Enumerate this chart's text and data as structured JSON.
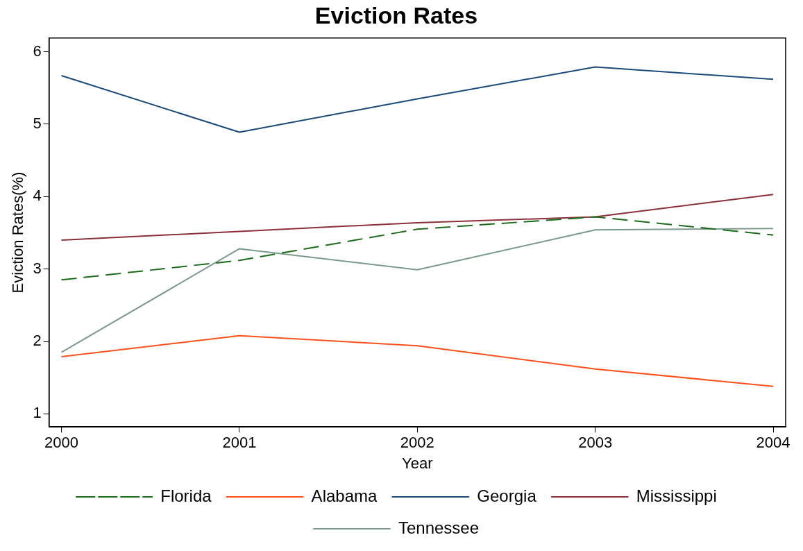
{
  "chart_data": {
    "type": "line",
    "title": "Eviction Rates",
    "xlabel": "Year",
    "ylabel": "Eviction Rates(%)",
    "x": [
      2000,
      2001,
      2002,
      2003,
      2004
    ],
    "xlim": [
      1999.93,
      2004.07
    ],
    "xticks": [
      2000,
      2001,
      2002,
      2003,
      2004
    ],
    "ylim": [
      0.82,
      6.19
    ],
    "yticks": [
      1,
      2,
      3,
      4,
      5,
      6
    ],
    "grid": false,
    "legend": "bottom",
    "marker": "none",
    "series": [
      {
        "name": "Florida",
        "color": "#1a6b1a",
        "line_style": "dashed",
        "values": [
          2.85,
          3.12,
          3.55,
          3.72,
          3.47
        ]
      },
      {
        "name": "Alabama",
        "color": "#ff4f1a",
        "values": [
          1.79,
          2.08,
          1.94,
          1.62,
          1.38
        ]
      },
      {
        "name": "Georgia",
        "color": "#1a4a7a",
        "values": [
          5.67,
          4.89,
          5.35,
          5.79,
          5.62
        ]
      },
      {
        "name": "Mississippi",
        "color": "#8b2f3a",
        "values": [
          3.4,
          3.52,
          3.64,
          3.72,
          4.03
        ]
      },
      {
        "name": "Tennessee",
        "color": "#7a9a8a",
        "values": [
          1.85,
          3.28,
          2.99,
          3.54,
          3.56
        ]
      }
    ]
  }
}
